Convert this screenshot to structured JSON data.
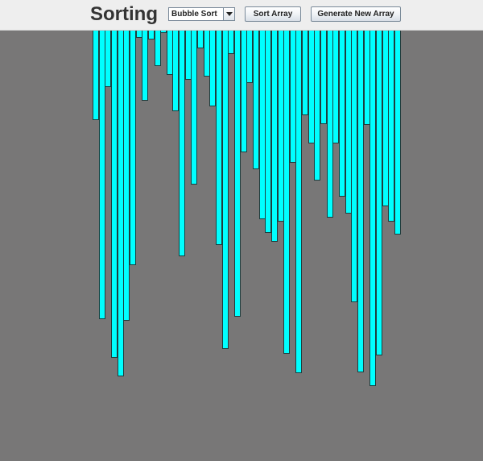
{
  "toolbar": {
    "title": "Sorting",
    "algorithm_select": {
      "selected": "Bubble Sort"
    },
    "sort_button_label": "Sort Array",
    "generate_button_label": "Generate New Array"
  },
  "array": {
    "bar_color": "#00ffff",
    "bar_outline_color": "#1f3d3d",
    "background_color": "#787777",
    "values": [
      111,
      358,
      70,
      406,
      429,
      360,
      291,
      9,
      87,
      11,
      44,
      3,
      55,
      100,
      280,
      61,
      191,
      22,
      57,
      94,
      266,
      395,
      29,
      355,
      151,
      65,
      172,
      234,
      251,
      262,
      237,
      401,
      164,
      425,
      105,
      140,
      186,
      116,
      232,
      140,
      206,
      227,
      337,
      424,
      117,
      441,
      403,
      218,
      237,
      253
    ]
  }
}
